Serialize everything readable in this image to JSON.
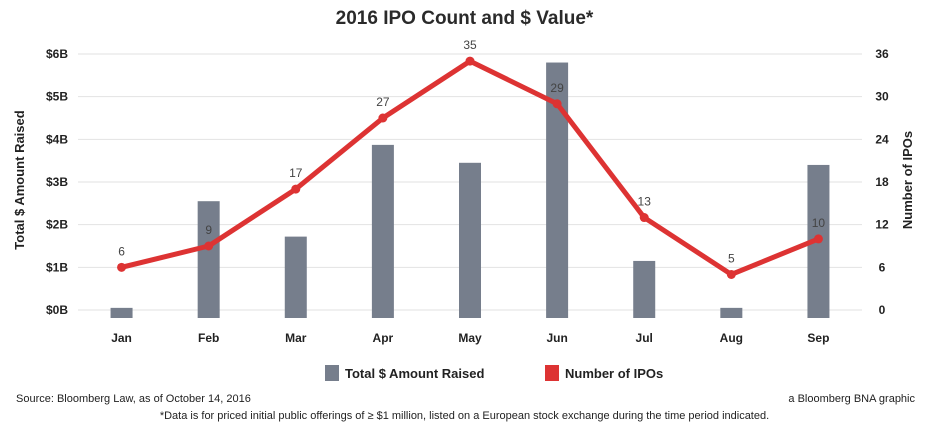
{
  "chart_data": {
    "type": "bar+line",
    "title": "2016 IPO Count and $ Value*",
    "categories": [
      "Jan",
      "Feb",
      "Mar",
      "Apr",
      "May",
      "Jun",
      "Jul",
      "Aug",
      "Sep"
    ],
    "series": [
      {
        "name": "Total $ Amount Raised",
        "type": "bar",
        "axis": "left",
        "unit": "$B",
        "values": [
          0.05,
          2.55,
          1.72,
          3.87,
          3.45,
          5.8,
          1.15,
          0.05,
          3.4
        ],
        "color": "#767e8c"
      },
      {
        "name": "Number of IPOs",
        "type": "line",
        "axis": "right",
        "values": [
          6,
          9,
          17,
          27,
          35,
          29,
          13,
          5,
          10
        ],
        "color": "#dd3333"
      }
    ],
    "left_axis": {
      "label": "Total $ Amount Raised",
      "range": [
        0,
        6
      ],
      "ticks": [
        {
          "v": 0,
          "label": "$0B"
        },
        {
          "v": 1,
          "label": "$1B"
        },
        {
          "v": 2,
          "label": "$2B"
        },
        {
          "v": 3,
          "label": "$3B"
        },
        {
          "v": 4,
          "label": "$4B"
        },
        {
          "v": 5,
          "label": "$5B"
        },
        {
          "v": 6,
          "label": "$6B"
        }
      ]
    },
    "right_axis": {
      "label": "Number of IPOs",
      "range": [
        0,
        36
      ],
      "ticks": [
        {
          "v": 0,
          "label": "0"
        },
        {
          "v": 6,
          "label": "6"
        },
        {
          "v": 12,
          "label": "12"
        },
        {
          "v": 18,
          "label": "18"
        },
        {
          "v": 24,
          "label": "24"
        },
        {
          "v": 30,
          "label": "30"
        },
        {
          "v": 36,
          "label": "36"
        }
      ]
    },
    "legend": {
      "position": "bottom",
      "items": [
        "Total $ Amount Raised",
        "Number of IPOs"
      ]
    },
    "grid": true
  },
  "footer": {
    "source": "Source: Bloomberg Law, as of October 14, 2016",
    "credit": "a Bloomberg BNA graphic",
    "note": "*Data is for priced initial public offerings of ≥ $1 million, listed on a European stock exchange during the time period indicated."
  }
}
